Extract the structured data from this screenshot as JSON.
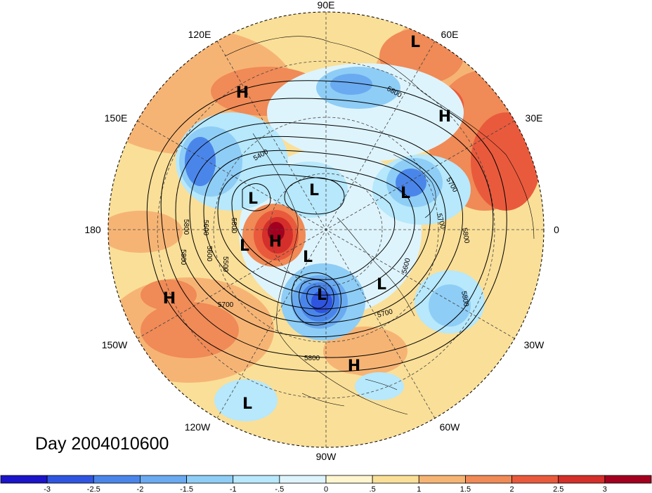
{
  "title": "Day 2004010600",
  "longitude_labels": [
    "90E",
    "60E",
    "30E",
    "0",
    "30W",
    "60W",
    "90W",
    "120W",
    "150W",
    "180",
    "150E",
    "120E"
  ],
  "contour_labels": [
    "5800",
    "5800",
    "5700",
    "5800",
    "5700",
    "5800",
    "5600",
    "5700",
    "5600",
    "5500",
    "5400",
    "5800",
    "5600",
    "5800",
    "5800",
    "5700"
  ],
  "pressure_centers": [
    {
      "type": "H",
      "label": "H"
    },
    {
      "type": "L",
      "label": "L"
    },
    {
      "type": "H",
      "label": "H"
    },
    {
      "type": "L",
      "label": "L"
    },
    {
      "type": "L",
      "label": "L"
    },
    {
      "type": "L",
      "label": "L"
    },
    {
      "type": "H",
      "label": "H"
    },
    {
      "type": "L",
      "label": "L"
    },
    {
      "type": "L",
      "label": "L"
    },
    {
      "type": "L",
      "label": "L"
    },
    {
      "type": "L",
      "label": "L"
    },
    {
      "type": "H",
      "label": "H"
    },
    {
      "type": "H",
      "label": "H"
    },
    {
      "type": "L",
      "label": "L"
    }
  ],
  "colorbar": {
    "ticks": [
      "-3",
      "-2.5",
      "-2",
      "-1.5",
      "-1",
      "-.5",
      "0",
      ".5",
      "1",
      "1.5",
      "2",
      "2.5",
      "3"
    ],
    "colors": [
      "#1b14c8",
      "#2f55e0",
      "#4a86ea",
      "#6aaaf0",
      "#8ecdf6",
      "#b7e8fb",
      "#def4fc",
      "#fff6cf",
      "#fadf98",
      "#f6b474",
      "#f08a56",
      "#e95a3c",
      "#d42f2a",
      "#a3001f"
    ]
  }
}
